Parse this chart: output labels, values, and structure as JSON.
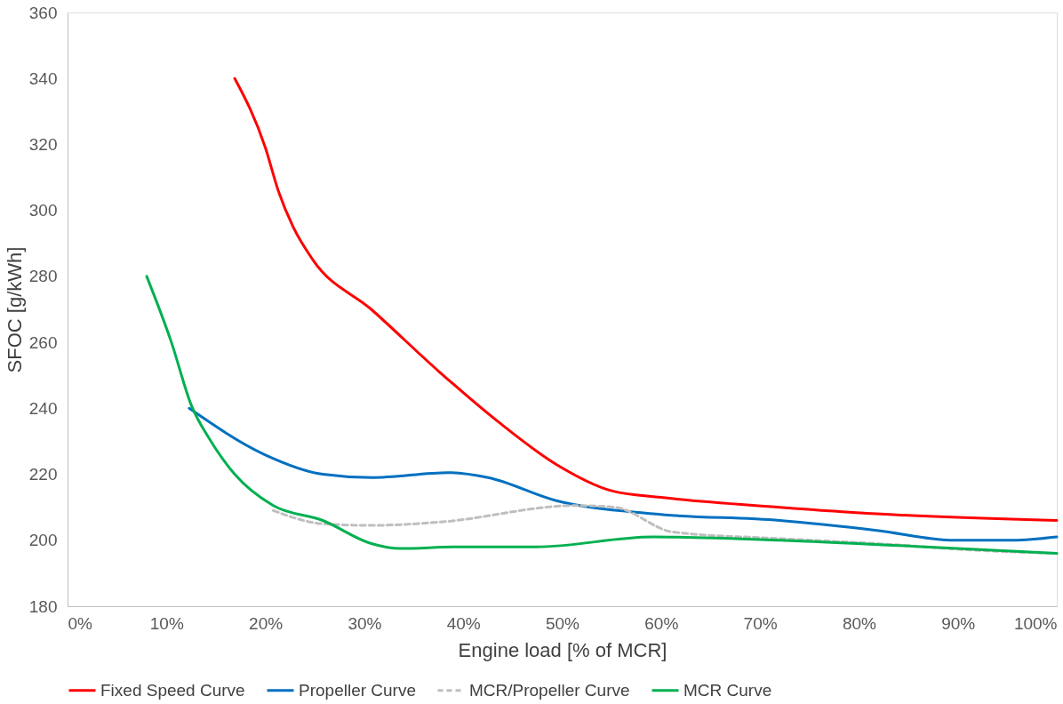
{
  "chart_data": {
    "type": "line",
    "xlabel": "Engine load [% of MCR]",
    "ylabel": "SFOC [g/kWh]",
    "xlim": [
      0,
      100
    ],
    "xticks": [
      {
        "value": 0,
        "label": "0%"
      },
      {
        "value": 10,
        "label": "10%"
      },
      {
        "value": 20,
        "label": "20%"
      },
      {
        "value": 30,
        "label": "30%"
      },
      {
        "value": 40,
        "label": "40%"
      },
      {
        "value": 50,
        "label": "50%"
      },
      {
        "value": 60,
        "label": "60%"
      },
      {
        "value": 70,
        "label": "70%"
      },
      {
        "value": 80,
        "label": "80%"
      },
      {
        "value": 90,
        "label": "90%"
      },
      {
        "value": 100,
        "label": "100%"
      }
    ],
    "ylim": [
      180,
      360
    ],
    "yticks": [
      180,
      200,
      220,
      240,
      260,
      280,
      300,
      320,
      340,
      360
    ],
    "grid": false,
    "legend": "bottom",
    "marker": "none",
    "series": [
      {
        "name": "Fixed Speed Curve",
        "color": "#ff0000",
        "line_style": "solid",
        "x": [
          16.9,
          20,
          21.3,
          22.8,
          24.8,
          30.7,
          37.6,
          43.5,
          49.4,
          55,
          60,
          72,
          81.8,
          100
        ],
        "values": [
          340,
          319,
          306,
          295,
          285,
          270,
          251,
          236,
          223,
          215,
          213,
          210,
          208,
          206
        ]
      },
      {
        "name": "Propeller Curve",
        "color": "#0070c0",
        "line_style": "solid",
        "x": [
          12.3,
          19.9,
          25.8,
          30.7,
          38.5,
          42.5,
          49.4,
          59.2,
          72,
          81.8,
          89.7,
          95.6,
          100
        ],
        "values": [
          240,
          226,
          220,
          219,
          220.5,
          219,
          212,
          208,
          206,
          203,
          200,
          200,
          201
        ]
      },
      {
        "name": "MCR/Propeller Curve",
        "color": "#bfbfbf",
        "line_style": "dashed",
        "x": [
          20.8,
          25.8,
          30.7,
          37.6,
          51.3,
          55.3,
          61.2,
          72,
          81.8,
          91.6,
          100
        ],
        "values": [
          209,
          205,
          204.5,
          205.5,
          210.5,
          210,
          202.5,
          200.5,
          199,
          197,
          196
        ]
      },
      {
        "name": "MCR Curve",
        "color": "#00b050",
        "line_style": "solid",
        "x": [
          8,
          10.5,
          12.5,
          14.5,
          16.9,
          20.8,
          25.8,
          30.7,
          33.6,
          39.5,
          47.4,
          59.2,
          72,
          86.7,
          100
        ],
        "values": [
          280,
          260,
          241,
          230,
          220,
          210.5,
          206,
          199,
          197.5,
          198,
          198,
          201,
          200,
          198,
          196
        ]
      }
    ]
  }
}
